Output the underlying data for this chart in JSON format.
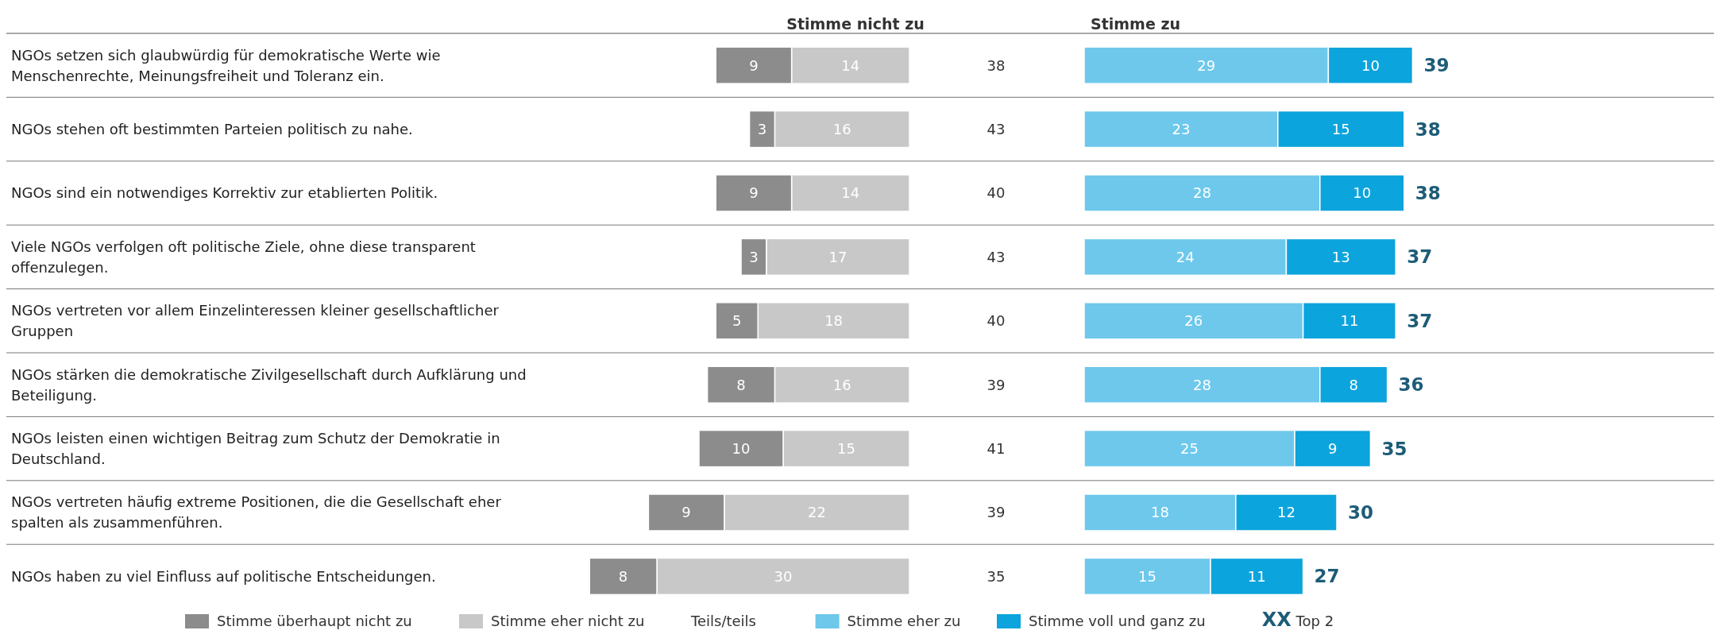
{
  "chart_data": [
    {
      "type": "bar",
      "orientation": "horizontal",
      "stacked": true,
      "title": "Stimme nicht zu",
      "categories": [
        "NGOs setzen sich glaubwürdig für demokratische Werte wie Menschenrechte, Meinungsfreiheit und Toleranz ein.",
        "NGOs stehen oft bestimmten Parteien politisch zu nahe.",
        "NGOs sind ein notwendiges Korrektiv zur etablierten Politik.",
        "Viele NGOs verfolgen oft politische Ziele, ohne diese transparent offenzulegen.",
        "NGOs vertreten vor allem Einzelinteressen kleiner gesellschaftlicher Gruppen",
        "NGOs stärken die demokratische Zivilgesellschaft durch Aufklärung und Beteiligung.",
        "NGOs leisten einen wichtigen Beitrag zum Schutz der Demokratie in Deutschland.",
        "NGOs vertreten häufig extreme Positionen, die die Gesellschaft eher spalten als zusammenführen.",
        "NGOs haben zu viel Einfluss auf politische Entscheidungen."
      ],
      "series": [
        {
          "name": "Stimme eher nicht zu",
          "color": "#c8c8c8",
          "values": [
            14,
            16,
            14,
            17,
            18,
            16,
            15,
            22,
            30
          ]
        },
        {
          "name": "Stimme überhaupt nicht zu",
          "color": "#8c8c8c",
          "values": [
            9,
            3,
            9,
            3,
            5,
            8,
            10,
            9,
            8
          ]
        }
      ],
      "data_labels": true,
      "legend": "bottom"
    },
    {
      "type": "other",
      "series": [
        {
          "name": "Teils/teils",
          "values": [
            38,
            43,
            40,
            43,
            40,
            39,
            41,
            39,
            35
          ]
        }
      ],
      "data_labels": true
    },
    {
      "type": "bar",
      "orientation": "horizontal",
      "stacked": true,
      "title": "Stimme zu",
      "series": [
        {
          "name": "Stimme eher zu",
          "color": "#6dc8ec",
          "values": [
            29,
            23,
            28,
            24,
            26,
            28,
            25,
            18,
            15
          ]
        },
        {
          "name": "Stimme voll und ganz zu",
          "color": "#0ca4dc",
          "values": [
            10,
            15,
            10,
            13,
            11,
            8,
            9,
            12,
            11
          ]
        }
      ],
      "data_labels": true,
      "totals": [
        "39",
        "38",
        "38",
        "37",
        "37",
        "36",
        "35",
        "30",
        "27"
      ],
      "annotations": [
        "XX Top 2"
      ],
      "legend": "bottom"
    }
  ]
}
